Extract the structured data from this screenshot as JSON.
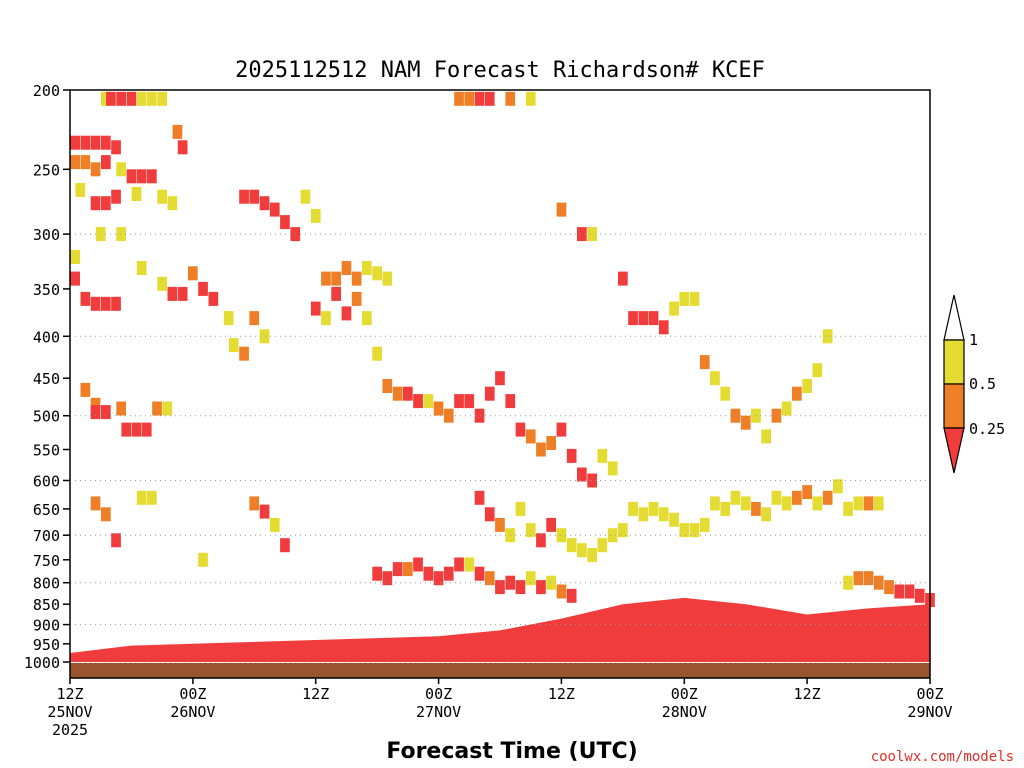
{
  "chart_data": {
    "type": "heatmap",
    "title": "2025112512 NAM Forecast Richardson# KCEF",
    "xlabel": "Forecast Time (UTC)",
    "ylabel": "",
    "credit": "coolwx.com/models",
    "y_scale": "log-pressure",
    "y_reversed": true,
    "y_range": [
      200,
      1000
    ],
    "x_range_hours": [
      0,
      84
    ],
    "y_ticks": [
      "200",
      "250",
      "300",
      "350",
      "400",
      "450",
      "500",
      "550",
      "600",
      "650",
      "700",
      "750",
      "800",
      "850",
      "900",
      "950",
      "1000"
    ],
    "y_gridlines": [
      300,
      400,
      500,
      600,
      700,
      800,
      900,
      1000
    ],
    "x_ticks": [
      {
        "hour": 0,
        "l1": "12Z",
        "l2": "25NOV",
        "l3": "2025"
      },
      {
        "hour": 12,
        "l1": "00Z",
        "l2": "26NOV",
        "l3": ""
      },
      {
        "hour": 24,
        "l1": "12Z",
        "l2": "",
        "l3": ""
      },
      {
        "hour": 36,
        "l1": "00Z",
        "l2": "27NOV",
        "l3": ""
      },
      {
        "hour": 48,
        "l1": "12Z",
        "l2": "",
        "l3": ""
      },
      {
        "hour": 60,
        "l1": "00Z",
        "l2": "28NOV",
        "l3": ""
      },
      {
        "hour": 72,
        "l1": "12Z",
        "l2": "",
        "l3": ""
      },
      {
        "hour": 84,
        "l1": "00Z",
        "l2": "29NOV",
        "l3": ""
      }
    ],
    "colorbar": {
      "labels": [
        "1",
        "0.5",
        "0.25"
      ],
      "colors": {
        "lt025": "#f03c3c",
        "lt05": "#ee7f26",
        "lt1": "#e4dc32",
        "ge1": "#ffffff"
      }
    },
    "ground_color": "#9a5530",
    "surface_pressure": 1000,
    "cells": [
      [
        0.5,
        232,
        "r"
      ],
      [
        1.5,
        232,
        "r"
      ],
      [
        2.5,
        232,
        "r"
      ],
      [
        3.5,
        232,
        "r"
      ],
      [
        4.5,
        235,
        "r"
      ],
      [
        0.5,
        245,
        "o"
      ],
      [
        1.5,
        245,
        "o"
      ],
      [
        2.5,
        250,
        "o"
      ],
      [
        3.5,
        245,
        "r"
      ],
      [
        5,
        250,
        "y"
      ],
      [
        1,
        265,
        "y"
      ],
      [
        2.5,
        275,
        "r"
      ],
      [
        3.5,
        275,
        "r"
      ],
      [
        4.5,
        270,
        "r"
      ],
      [
        6,
        255,
        "r"
      ],
      [
        7,
        255,
        "r"
      ],
      [
        8,
        255,
        "r"
      ],
      [
        6.5,
        268,
        "y"
      ],
      [
        9,
        270,
        "y"
      ],
      [
        10,
        275,
        "y"
      ],
      [
        3.5,
        205,
        "y"
      ],
      [
        4,
        205,
        "r"
      ],
      [
        5,
        205,
        "r"
      ],
      [
        6,
        205,
        "r"
      ],
      [
        7,
        205,
        "y"
      ],
      [
        8,
        205,
        "y"
      ],
      [
        9,
        205,
        "y"
      ],
      [
        10.5,
        225,
        "o"
      ],
      [
        11,
        235,
        "r"
      ],
      [
        0.5,
        340,
        "r"
      ],
      [
        1.5,
        360,
        "r"
      ],
      [
        2.5,
        365,
        "r"
      ],
      [
        3.5,
        365,
        "r"
      ],
      [
        4.5,
        365,
        "r"
      ],
      [
        0.5,
        320,
        "y"
      ],
      [
        3,
        300,
        "y"
      ],
      [
        5,
        300,
        "y"
      ],
      [
        7,
        330,
        "y"
      ],
      [
        9,
        345,
        "y"
      ],
      [
        10,
        355,
        "r"
      ],
      [
        11,
        355,
        "r"
      ],
      [
        12,
        335,
        "o"
      ],
      [
        13,
        350,
        "r"
      ],
      [
        14,
        360,
        "r"
      ],
      [
        15.5,
        380,
        "y"
      ],
      [
        16,
        410,
        "y"
      ],
      [
        17,
        420,
        "o"
      ],
      [
        18,
        380,
        "o"
      ],
      [
        19,
        400,
        "y"
      ],
      [
        1.5,
        465,
        "o"
      ],
      [
        2.5,
        485,
        "o"
      ],
      [
        2.5,
        495,
        "r"
      ],
      [
        3.5,
        495,
        "r"
      ],
      [
        5,
        490,
        "o"
      ],
      [
        5.5,
        520,
        "r"
      ],
      [
        6.5,
        520,
        "r"
      ],
      [
        7.5,
        520,
        "r"
      ],
      [
        8.5,
        490,
        "o"
      ],
      [
        9.5,
        490,
        "y"
      ],
      [
        2.5,
        640,
        "o"
      ],
      [
        3.5,
        660,
        "o"
      ],
      [
        4.5,
        710,
        "r"
      ],
      [
        7,
        630,
        "y"
      ],
      [
        8,
        630,
        "y"
      ],
      [
        13,
        750,
        "y"
      ],
      [
        18,
        640,
        "o"
      ],
      [
        19,
        655,
        "r"
      ],
      [
        20,
        680,
        "y"
      ],
      [
        21,
        720,
        "r"
      ],
      [
        17,
        270,
        "r"
      ],
      [
        18,
        270,
        "r"
      ],
      [
        19,
        275,
        "r"
      ],
      [
        20,
        280,
        "r"
      ],
      [
        21,
        290,
        "r"
      ],
      [
        22,
        300,
        "r"
      ],
      [
        23,
        270,
        "y"
      ],
      [
        24,
        285,
        "y"
      ],
      [
        25,
        340,
        "o"
      ],
      [
        26,
        340,
        "o"
      ],
      [
        27,
        330,
        "o"
      ],
      [
        28,
        340,
        "o"
      ],
      [
        29,
        330,
        "y"
      ],
      [
        30,
        335,
        "y"
      ],
      [
        31,
        340,
        "y"
      ],
      [
        24,
        370,
        "r"
      ],
      [
        25,
        380,
        "y"
      ],
      [
        26,
        355,
        "r"
      ],
      [
        27,
        375,
        "r"
      ],
      [
        28,
        360,
        "o"
      ],
      [
        29,
        380,
        "y"
      ],
      [
        30,
        420,
        "y"
      ],
      [
        31,
        460,
        "o"
      ],
      [
        32,
        470,
        "o"
      ],
      [
        33,
        470,
        "r"
      ],
      [
        34,
        480,
        "r"
      ],
      [
        35,
        480,
        "y"
      ],
      [
        36,
        490,
        "o"
      ],
      [
        37,
        500,
        "o"
      ],
      [
        38,
        480,
        "r"
      ],
      [
        39,
        480,
        "r"
      ],
      [
        40,
        500,
        "r"
      ],
      [
        41,
        470,
        "r"
      ],
      [
        42,
        450,
        "r"
      ],
      [
        43,
        480,
        "r"
      ],
      [
        44,
        520,
        "r"
      ],
      [
        45,
        530,
        "o"
      ],
      [
        46,
        550,
        "o"
      ],
      [
        47,
        540,
        "o"
      ],
      [
        48,
        520,
        "r"
      ],
      [
        49,
        560,
        "r"
      ],
      [
        50,
        590,
        "r"
      ],
      [
        51,
        600,
        "r"
      ],
      [
        52,
        560,
        "y"
      ],
      [
        53,
        580,
        "y"
      ],
      [
        38,
        205,
        "o"
      ],
      [
        39,
        205,
        "o"
      ],
      [
        40,
        205,
        "r"
      ],
      [
        41,
        205,
        "r"
      ],
      [
        43,
        205,
        "o"
      ],
      [
        45,
        205,
        "y"
      ],
      [
        50,
        300,
        "r"
      ],
      [
        48,
        280,
        "o"
      ],
      [
        51,
        300,
        "y"
      ],
      [
        54,
        340,
        "r"
      ],
      [
        55,
        380,
        "r"
      ],
      [
        56,
        380,
        "r"
      ],
      [
        57,
        380,
        "r"
      ],
      [
        58,
        390,
        "r"
      ],
      [
        59,
        370,
        "y"
      ],
      [
        60,
        360,
        "y"
      ],
      [
        61,
        360,
        "y"
      ],
      [
        62,
        430,
        "o"
      ],
      [
        63,
        450,
        "y"
      ],
      [
        64,
        470,
        "y"
      ],
      [
        65,
        500,
        "o"
      ],
      [
        66,
        510,
        "o"
      ],
      [
        67,
        500,
        "y"
      ],
      [
        68,
        530,
        "y"
      ],
      [
        69,
        500,
        "o"
      ],
      [
        70,
        490,
        "y"
      ],
      [
        71,
        470,
        "o"
      ],
      [
        72,
        460,
        "y"
      ],
      [
        73,
        440,
        "y"
      ],
      [
        74,
        400,
        "y"
      ],
      [
        55,
        650,
        "y"
      ],
      [
        56,
        660,
        "y"
      ],
      [
        57,
        650,
        "y"
      ],
      [
        58,
        660,
        "y"
      ],
      [
        59,
        670,
        "y"
      ],
      [
        60,
        690,
        "y"
      ],
      [
        61,
        690,
        "y"
      ],
      [
        62,
        680,
        "y"
      ],
      [
        63,
        640,
        "y"
      ],
      [
        64,
        650,
        "y"
      ],
      [
        65,
        630,
        "y"
      ],
      [
        66,
        640,
        "y"
      ],
      [
        67,
        650,
        "o"
      ],
      [
        68,
        660,
        "y"
      ],
      [
        69,
        630,
        "y"
      ],
      [
        70,
        640,
        "y"
      ],
      [
        71,
        630,
        "o"
      ],
      [
        72,
        620,
        "o"
      ],
      [
        73,
        640,
        "y"
      ],
      [
        74,
        630,
        "o"
      ],
      [
        75,
        610,
        "y"
      ],
      [
        76,
        650,
        "y"
      ],
      [
        77,
        640,
        "y"
      ],
      [
        78,
        640,
        "o"
      ],
      [
        79,
        640,
        "y"
      ],
      [
        40,
        630,
        "r"
      ],
      [
        41,
        660,
        "r"
      ],
      [
        42,
        680,
        "o"
      ],
      [
        43,
        700,
        "y"
      ],
      [
        44,
        650,
        "y"
      ],
      [
        45,
        690,
        "y"
      ],
      [
        46,
        710,
        "r"
      ],
      [
        47,
        680,
        "r"
      ],
      [
        48,
        700,
        "y"
      ],
      [
        49,
        720,
        "y"
      ],
      [
        50,
        730,
        "y"
      ],
      [
        51,
        740,
        "y"
      ],
      [
        52,
        720,
        "y"
      ],
      [
        53,
        700,
        "y"
      ],
      [
        54,
        690,
        "y"
      ],
      [
        30,
        780,
        "r"
      ],
      [
        31,
        790,
        "r"
      ],
      [
        32,
        770,
        "r"
      ],
      [
        33,
        770,
        "o"
      ],
      [
        34,
        760,
        "r"
      ],
      [
        35,
        780,
        "r"
      ],
      [
        36,
        790,
        "r"
      ],
      [
        37,
        780,
        "r"
      ],
      [
        38,
        760,
        "r"
      ],
      [
        39,
        760,
        "y"
      ],
      [
        40,
        780,
        "r"
      ],
      [
        41,
        790,
        "o"
      ],
      [
        42,
        810,
        "r"
      ],
      [
        43,
        800,
        "r"
      ],
      [
        44,
        810,
        "r"
      ],
      [
        45,
        790,
        "y"
      ],
      [
        46,
        810,
        "r"
      ],
      [
        47,
        800,
        "y"
      ],
      [
        48,
        820,
        "o"
      ],
      [
        49,
        830,
        "r"
      ],
      [
        76,
        800,
        "y"
      ],
      [
        77,
        790,
        "o"
      ],
      [
        78,
        790,
        "o"
      ],
      [
        79,
        800,
        "o"
      ],
      [
        80,
        810,
        "o"
      ],
      [
        81,
        820,
        "r"
      ],
      [
        82,
        820,
        "r"
      ],
      [
        83,
        830,
        "r"
      ],
      [
        84,
        840,
        "r"
      ]
    ],
    "lower_band": [
      [
        0,
        975
      ],
      [
        6,
        955
      ],
      [
        12,
        950
      ],
      [
        18,
        945
      ],
      [
        24,
        940
      ],
      [
        30,
        935
      ],
      [
        36,
        930
      ],
      [
        42,
        915
      ],
      [
        48,
        885
      ],
      [
        54,
        850
      ],
      [
        60,
        835
      ],
      [
        66,
        850
      ],
      [
        72,
        875
      ],
      [
        78,
        860
      ],
      [
        84,
        850
      ]
    ]
  }
}
